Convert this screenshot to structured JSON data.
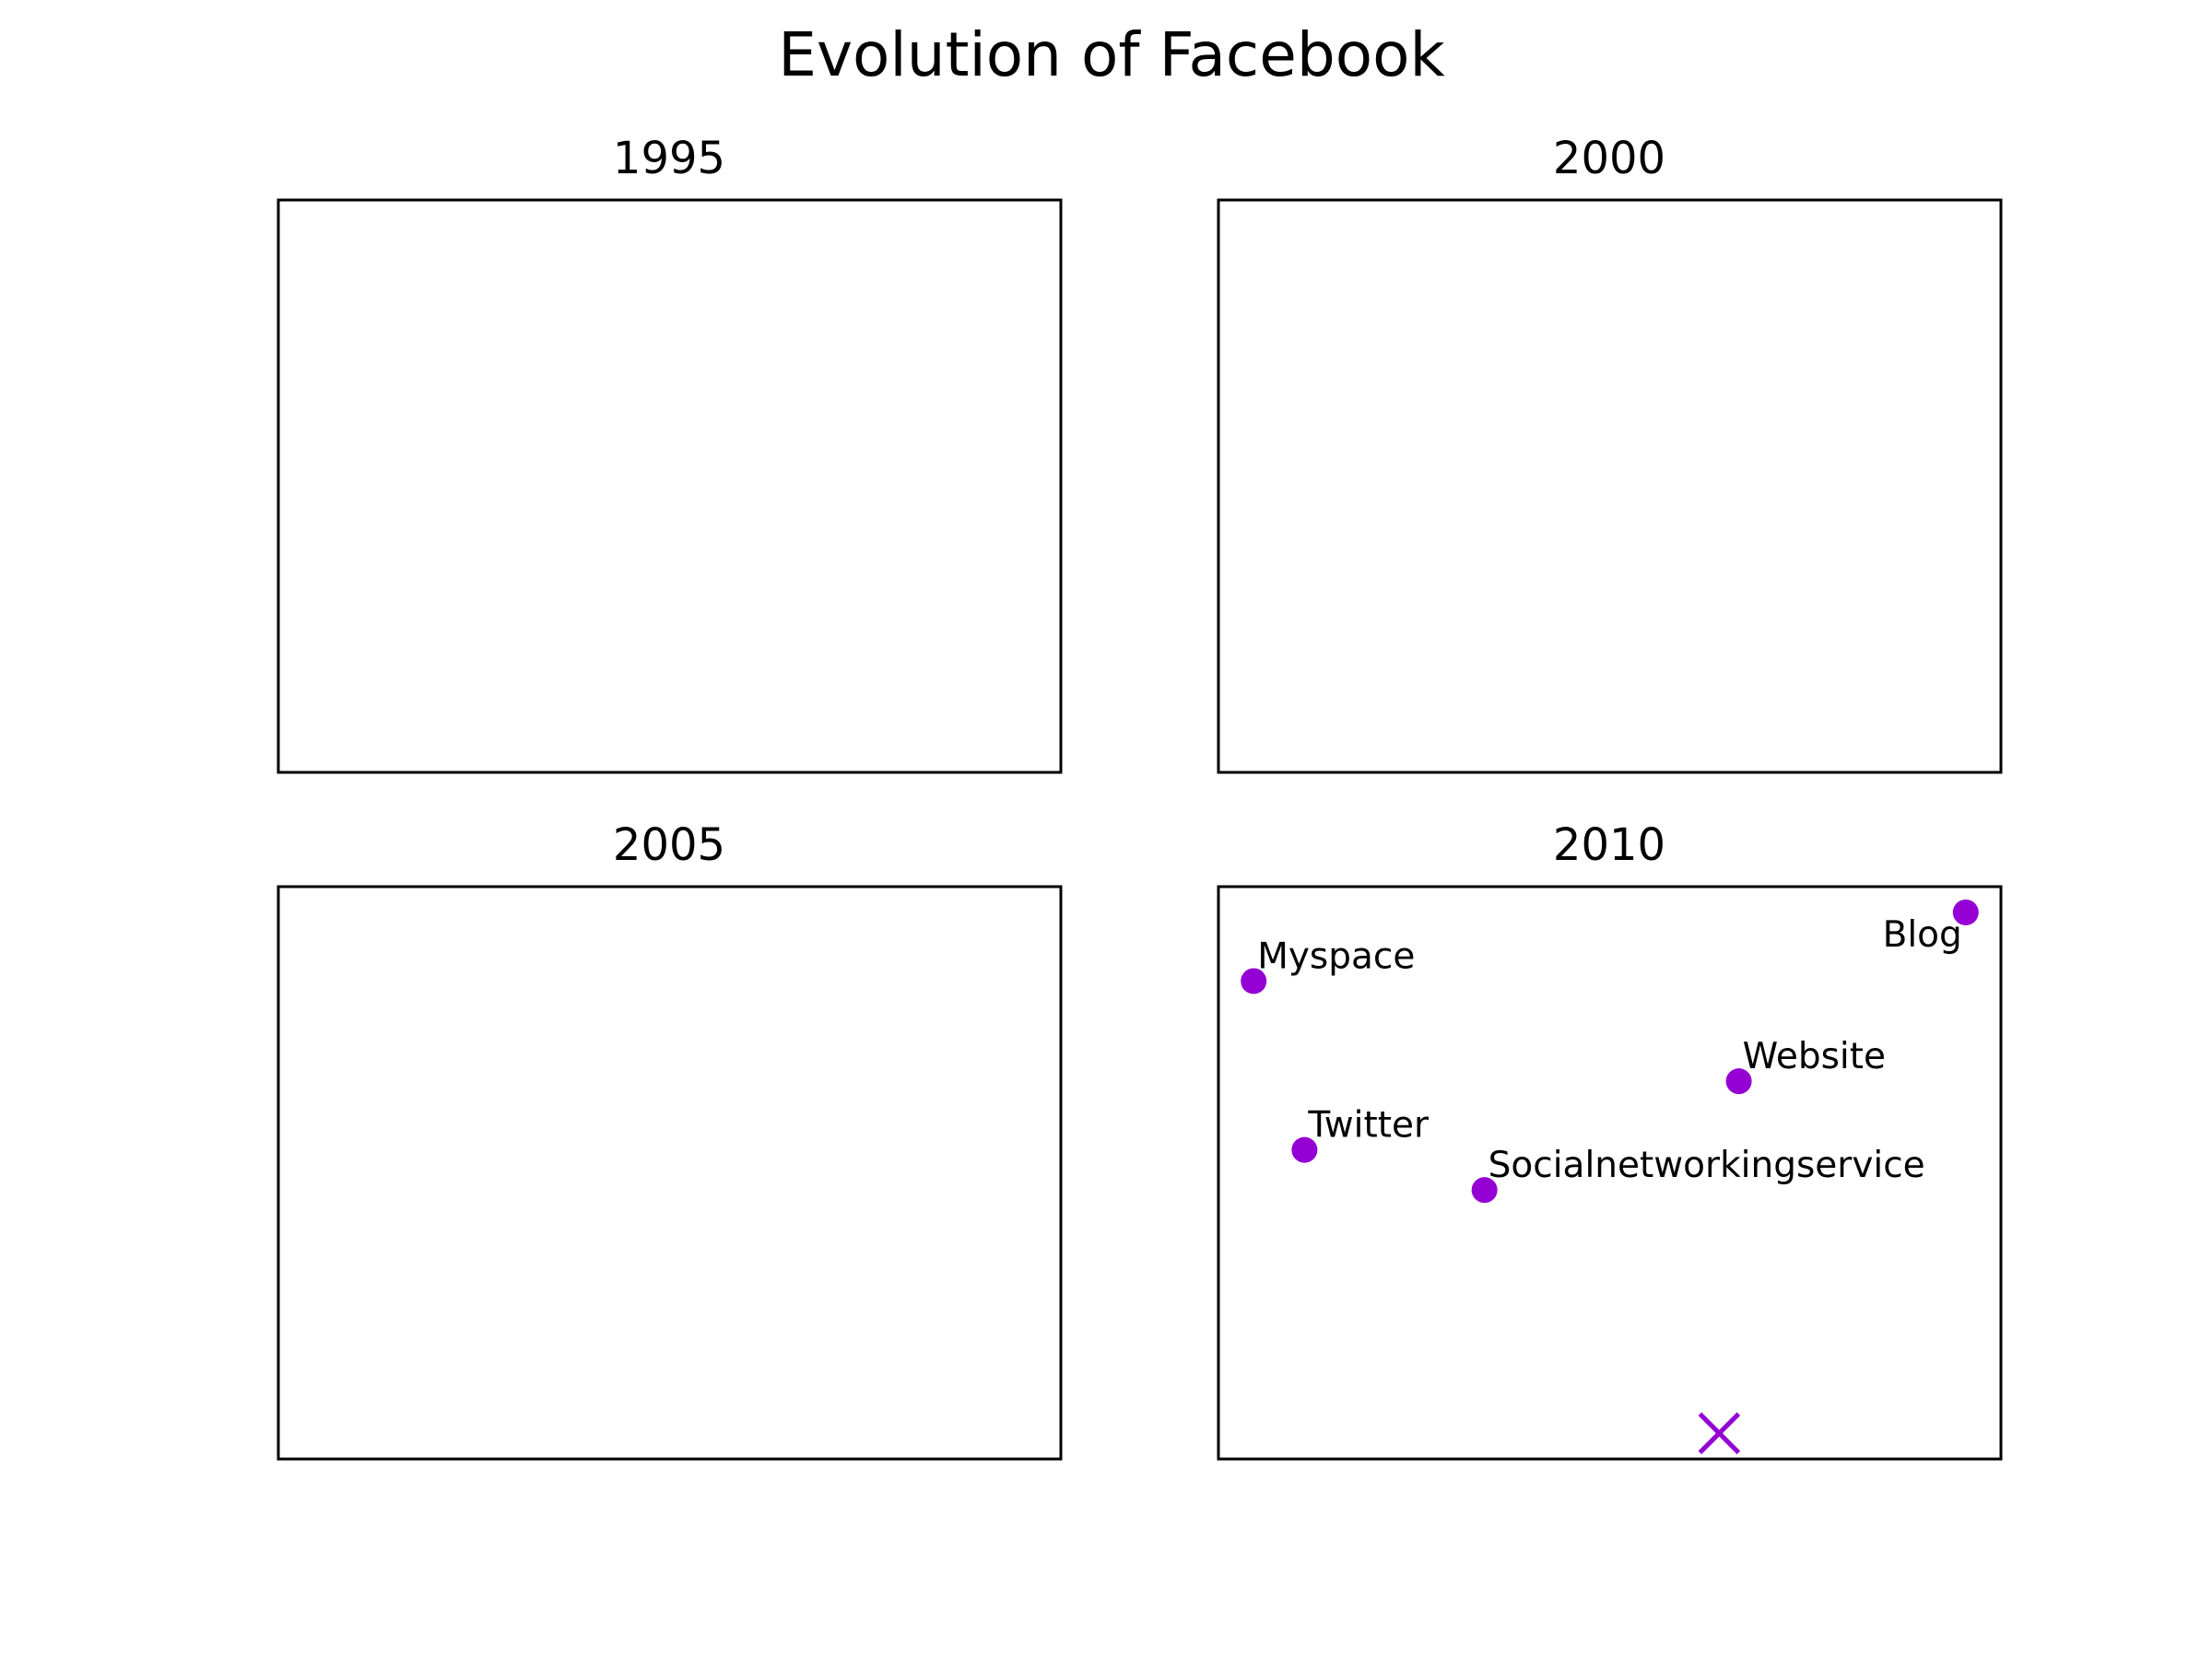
{
  "chart_data": {
    "title": "Evolution of Facebook",
    "type": "scatter",
    "grid": false,
    "axes_visible": false,
    "point_color": "#9400d3",
    "panels": [
      {
        "title": "1995",
        "points": []
      },
      {
        "title": "2000",
        "points": []
      },
      {
        "title": "2005",
        "points": []
      },
      {
        "title": "2010",
        "xlim": [
          0,
          1
        ],
        "ylim": [
          0,
          1
        ],
        "points": [
          {
            "label": "Myspace",
            "x": 0.045,
            "y": 0.835,
            "marker": "o",
            "label_side": "right"
          },
          {
            "label": "Twitter",
            "x": 0.11,
            "y": 0.54,
            "marker": "o",
            "label_side": "right"
          },
          {
            "label": "Socialnetworkingservice",
            "x": 0.34,
            "y": 0.47,
            "marker": "o",
            "label_side": "right"
          },
          {
            "label": "Website",
            "x": 0.665,
            "y": 0.66,
            "marker": "o",
            "label_side": "right"
          },
          {
            "label": "Blog",
            "x": 0.955,
            "y": 0.955,
            "marker": "o",
            "label_side": "left"
          },
          {
            "label": "",
            "x": 0.64,
            "y": 0.045,
            "marker": "x",
            "label_side": "none"
          }
        ]
      }
    ]
  }
}
